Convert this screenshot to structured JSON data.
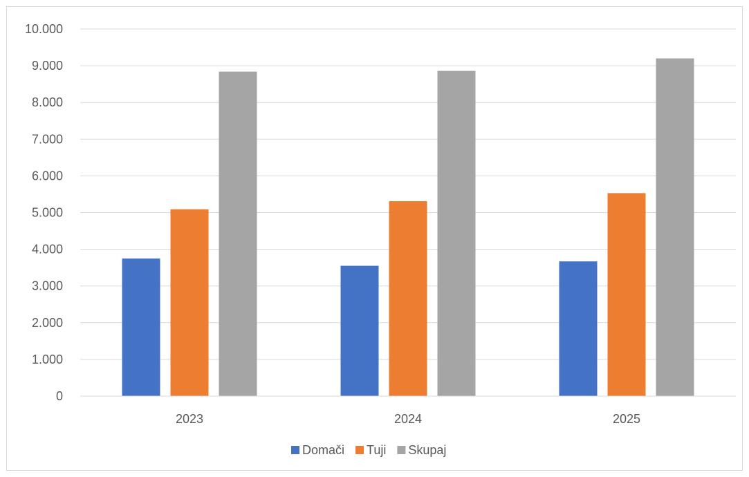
{
  "chart_data": {
    "type": "bar",
    "categories": [
      "2023",
      "2024",
      "2025"
    ],
    "series": [
      {
        "name": "Domači",
        "color": "#4472c4",
        "values": [
          3750,
          3550,
          3670
        ]
      },
      {
        "name": "Tuji",
        "color": "#ed7d31",
        "values": [
          5090,
          5310,
          5530
        ]
      },
      {
        "name": "Skupaj",
        "color": "#a5a5a5",
        "values": [
          8840,
          8860,
          9200
        ]
      }
    ],
    "title": "",
    "xlabel": "",
    "ylabel": "",
    "ylim": [
      0,
      10000
    ],
    "yticks": [
      "0",
      "1.000",
      "2.000",
      "3.000",
      "4.000",
      "5.000",
      "6.000",
      "7.000",
      "8.000",
      "9.000",
      "10.000"
    ],
    "grid": true,
    "legend_position": "bottom"
  }
}
